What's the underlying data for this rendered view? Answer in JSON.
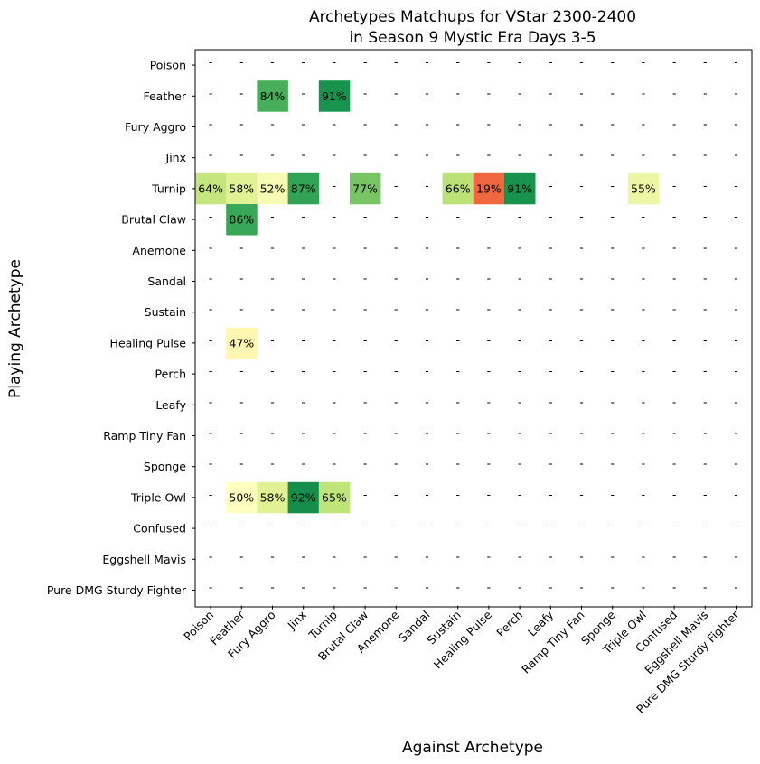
{
  "chart_data": {
    "type": "heatmap",
    "title_line1": "Archetypes Matchups for VStar 2300-2400",
    "title_line2": "in Season 9 Mystic Era Days 3-5",
    "xlabel": "Against Archetype",
    "ylabel": "Playing Archetype",
    "rows": [
      "Poison",
      "Feather",
      "Fury Aggro",
      "Jinx",
      "Turnip",
      "Brutal Claw",
      "Anemone",
      "Sandal",
      "Sustain",
      "Healing Pulse",
      "Perch",
      "Leafy",
      "Ramp Tiny Fan",
      "Sponge",
      "Triple Owl",
      "Confused",
      "Eggshell Mavis",
      "Pure DMG Sturdy Fighter"
    ],
    "columns": [
      "Poison",
      "Feather",
      "Fury Aggro",
      "Jinx",
      "Turnip",
      "Brutal Claw",
      "Anemone",
      "Sandal",
      "Sustain",
      "Healing Pulse",
      "Perch",
      "Leafy",
      "Ramp Tiny Fan",
      "Sponge",
      "Triple Owl",
      "Confused",
      "Eggshell Mavis",
      "Pure DMG Sturdy Fighter"
    ],
    "empty_marker": "-",
    "colormap": "RdYlGn",
    "values": [
      [
        null,
        null,
        null,
        null,
        null,
        null,
        null,
        null,
        null,
        null,
        null,
        null,
        null,
        null,
        null,
        null,
        null,
        null
      ],
      [
        null,
        null,
        84,
        null,
        91,
        null,
        null,
        null,
        null,
        null,
        null,
        null,
        null,
        null,
        null,
        null,
        null,
        null
      ],
      [
        null,
        null,
        null,
        null,
        null,
        null,
        null,
        null,
        null,
        null,
        null,
        null,
        null,
        null,
        null,
        null,
        null,
        null
      ],
      [
        null,
        null,
        null,
        null,
        null,
        null,
        null,
        null,
        null,
        null,
        null,
        null,
        null,
        null,
        null,
        null,
        null,
        null
      ],
      [
        64,
        58,
        52,
        87,
        null,
        77,
        null,
        null,
        66,
        19,
        91,
        null,
        null,
        null,
        55,
        null,
        null,
        null
      ],
      [
        null,
        86,
        null,
        null,
        null,
        null,
        null,
        null,
        null,
        null,
        null,
        null,
        null,
        null,
        null,
        null,
        null,
        null
      ],
      [
        null,
        null,
        null,
        null,
        null,
        null,
        null,
        null,
        null,
        null,
        null,
        null,
        null,
        null,
        null,
        null,
        null,
        null
      ],
      [
        null,
        null,
        null,
        null,
        null,
        null,
        null,
        null,
        null,
        null,
        null,
        null,
        null,
        null,
        null,
        null,
        null,
        null
      ],
      [
        null,
        null,
        null,
        null,
        null,
        null,
        null,
        null,
        null,
        null,
        null,
        null,
        null,
        null,
        null,
        null,
        null,
        null
      ],
      [
        null,
        47,
        null,
        null,
        null,
        null,
        null,
        null,
        null,
        null,
        null,
        null,
        null,
        null,
        null,
        null,
        null,
        null
      ],
      [
        null,
        null,
        null,
        null,
        null,
        null,
        null,
        null,
        null,
        null,
        null,
        null,
        null,
        null,
        null,
        null,
        null,
        null
      ],
      [
        null,
        null,
        null,
        null,
        null,
        null,
        null,
        null,
        null,
        null,
        null,
        null,
        null,
        null,
        null,
        null,
        null,
        null
      ],
      [
        null,
        null,
        null,
        null,
        null,
        null,
        null,
        null,
        null,
        null,
        null,
        null,
        null,
        null,
        null,
        null,
        null,
        null
      ],
      [
        null,
        null,
        null,
        null,
        null,
        null,
        null,
        null,
        null,
        null,
        null,
        null,
        null,
        null,
        null,
        null,
        null,
        null
      ],
      [
        null,
        50,
        58,
        92,
        65,
        null,
        null,
        null,
        null,
        null,
        null,
        null,
        null,
        null,
        null,
        null,
        null,
        null
      ],
      [
        null,
        null,
        null,
        null,
        null,
        null,
        null,
        null,
        null,
        null,
        null,
        null,
        null,
        null,
        null,
        null,
        null,
        null
      ],
      [
        null,
        null,
        null,
        null,
        null,
        null,
        null,
        null,
        null,
        null,
        null,
        null,
        null,
        null,
        null,
        null,
        null,
        null
      ],
      [
        null,
        null,
        null,
        null,
        null,
        null,
        null,
        null,
        null,
        null,
        null,
        null,
        null,
        null,
        null,
        null,
        null,
        null
      ]
    ]
  }
}
